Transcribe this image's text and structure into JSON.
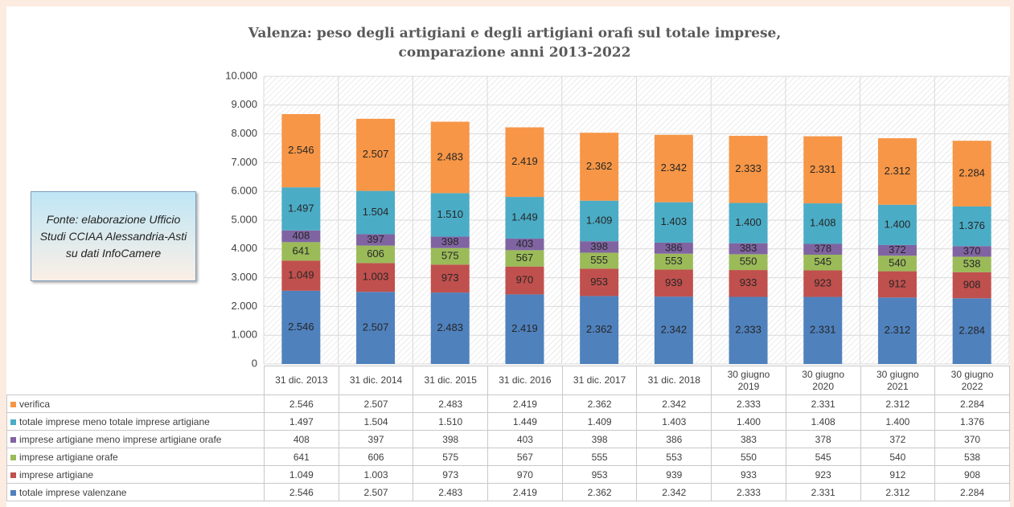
{
  "chart_data": {
    "type": "bar",
    "stacked": true,
    "title": [
      "Valenza: peso degli artigiani e degli artigiani orafi sul totale imprese,",
      "comparazione anni 2013-2022"
    ],
    "annotation": "Fonte: elaborazione Ufficio Studi CCIAA Alessandria-Asti su dati InfoCamere",
    "categories": [
      "31 dic. 2013",
      "31 dic. 2014",
      "31 dic. 2015",
      "31 dic. 2016",
      "31 dic. 2017",
      "31 dic. 2018",
      "30 giugno 2019",
      "30 giugno 2020",
      "30 giugno 2021",
      "30 giugno 2022"
    ],
    "series": [
      {
        "name": "totale imprese valenzane",
        "color": "#4f81bd",
        "values": [
          2546,
          2507,
          2483,
          2419,
          2362,
          2342,
          2333,
          2331,
          2312,
          2284
        ],
        "value_labels": [
          "2.546",
          "2.507",
          "2.483",
          "2.419",
          "2.362",
          "2.342",
          "2.333",
          "2.331",
          "2.312",
          "2.284"
        ]
      },
      {
        "name": "imprese artigiane",
        "color": "#c0504d",
        "values": [
          1049,
          1003,
          973,
          970,
          953,
          939,
          933,
          923,
          912,
          908
        ],
        "value_labels": [
          "1.049",
          "1.003",
          "973",
          "970",
          "953",
          "939",
          "933",
          "923",
          "912",
          "908"
        ]
      },
      {
        "name": "imprese artigiane orafe",
        "color": "#9bbb59",
        "values": [
          641,
          606,
          575,
          567,
          555,
          553,
          550,
          545,
          540,
          538
        ],
        "value_labels": [
          "641",
          "606",
          "575",
          "567",
          "555",
          "553",
          "550",
          "545",
          "540",
          "538"
        ]
      },
      {
        "name": "imprese artigiane meno imprese artigiane orafe",
        "color": "#8064a2",
        "values": [
          408,
          397,
          398,
          403,
          398,
          386,
          383,
          378,
          372,
          370
        ],
        "value_labels": [
          "408",
          "397",
          "398",
          "403",
          "398",
          "386",
          "383",
          "378",
          "372",
          "370"
        ]
      },
      {
        "name": "totale imprese meno totale imprese artigiane",
        "color": "#4bacc6",
        "values": [
          1497,
          1504,
          1510,
          1449,
          1409,
          1403,
          1400,
          1408,
          1400,
          1376
        ],
        "value_labels": [
          "1.497",
          "1.504",
          "1.510",
          "1.449",
          "1.409",
          "1.403",
          "1.400",
          "1.408",
          "1.400",
          "1.376"
        ]
      },
      {
        "name": "verifica",
        "color": "#f79646",
        "values": [
          2546,
          2507,
          2483,
          2419,
          2362,
          2342,
          2333,
          2331,
          2312,
          2284
        ],
        "value_labels": [
          "2.546",
          "2.507",
          "2.483",
          "2.419",
          "2.362",
          "2.342",
          "2.333",
          "2.331",
          "2.312",
          "2.284"
        ]
      }
    ],
    "ylim": [
      0,
      10000
    ],
    "yticks": [
      0,
      {
        "value": 1000,
        "label": "1.000"
      },
      {
        "value": 2000,
        "label": "2.000"
      },
      {
        "value": 3000,
        "label": "3.000"
      },
      {
        "value": 4000,
        "label": "4.000"
      },
      {
        "value": 5000,
        "label": "5.000"
      },
      {
        "value": 6000,
        "label": "6.000"
      },
      {
        "value": 7000,
        "label": "7.000"
      },
      {
        "value": 8000,
        "label": "8.000"
      },
      {
        "value": 9000,
        "label": "9.000"
      },
      {
        "value": 10000,
        "label": "10.000"
      }
    ],
    "grid": true
  }
}
